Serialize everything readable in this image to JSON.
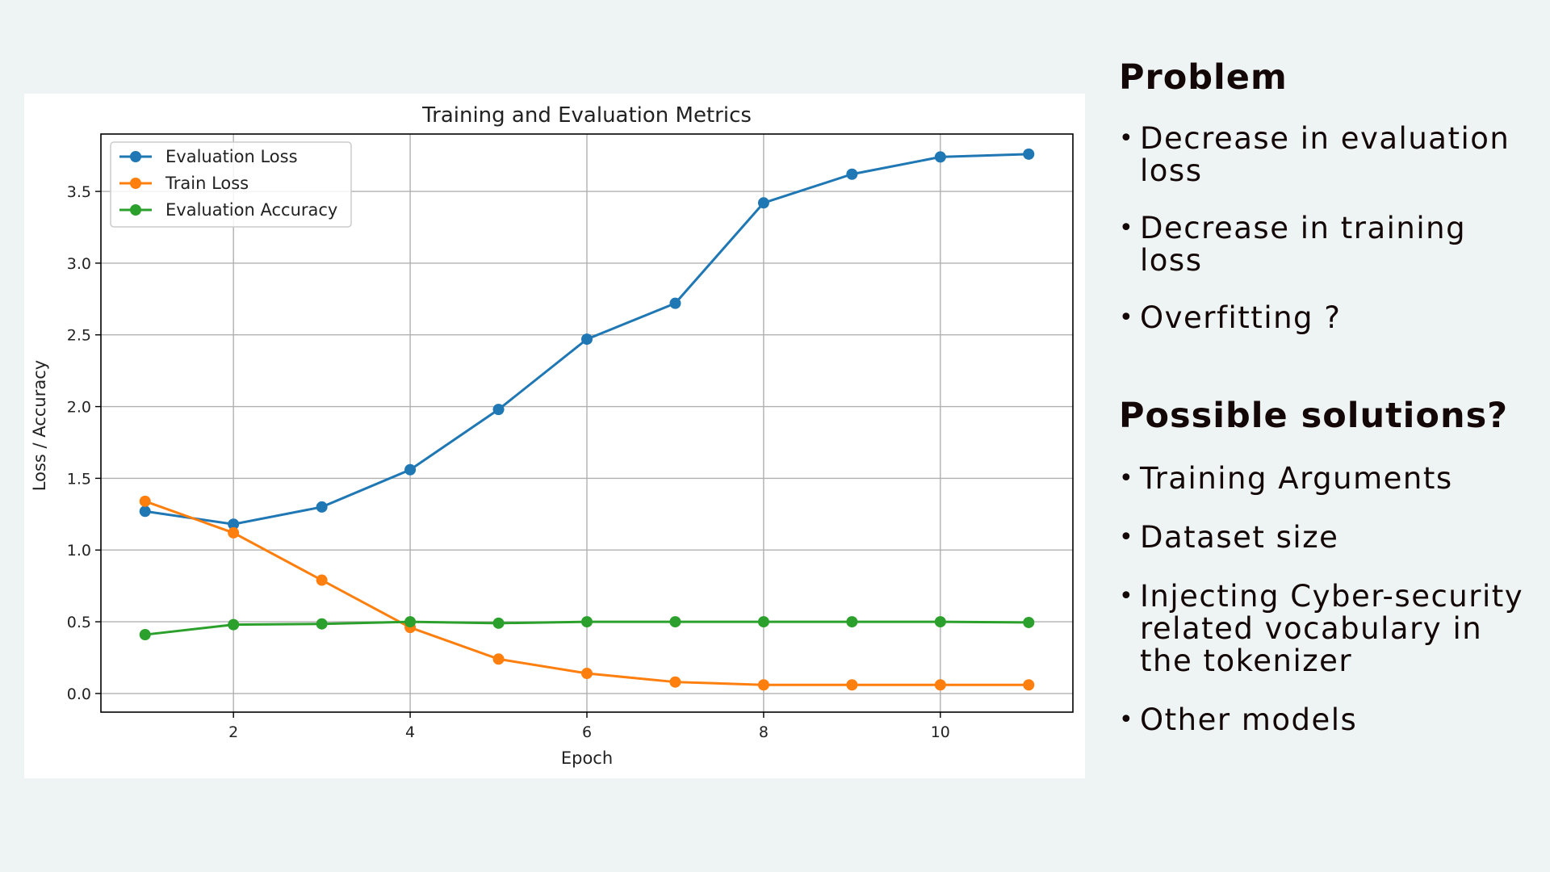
{
  "chart_data": {
    "type": "line",
    "title": "Training and Evaluation Metrics",
    "xlabel": "Epoch",
    "ylabel": "Loss / Accuracy",
    "xlim": [
      0.5,
      11.5
    ],
    "ylim": [
      -0.13,
      3.9
    ],
    "x_ticks": [
      "2",
      "4",
      "6",
      "8",
      "10"
    ],
    "y_ticks": [
      "0.0",
      "0.5",
      "1.0",
      "1.5",
      "2.0",
      "2.5",
      "3.0",
      "3.5"
    ],
    "grid": true,
    "legend_position": "top-left",
    "x": [
      1,
      2,
      3,
      4,
      5,
      6,
      7,
      8,
      9,
      10,
      11
    ],
    "series": [
      {
        "name": "Evaluation Loss",
        "color": "#1f77b4",
        "values": [
          1.27,
          1.18,
          1.3,
          1.56,
          1.98,
          2.47,
          2.72,
          3.42,
          3.62,
          3.74,
          3.76
        ]
      },
      {
        "name": "Train Loss",
        "color": "#ff7f0e",
        "values": [
          1.34,
          1.12,
          0.79,
          0.46,
          0.24,
          0.14,
          0.08,
          0.06,
          0.06,
          0.06,
          0.06
        ]
      },
      {
        "name": "Evaluation Accuracy",
        "color": "#2ca02c",
        "values": [
          0.41,
          0.48,
          0.485,
          0.5,
          0.49,
          0.5,
          0.5,
          0.5,
          0.5,
          0.5,
          0.495
        ]
      }
    ]
  },
  "side": {
    "problem_heading": "Problem",
    "problem_items": [
      "Decrease in evaluation loss",
      "Decrease in training loss",
      "Overfitting ?"
    ],
    "solutions_heading": "Possible solutions?",
    "solutions_items": [
      "Training Arguments",
      "Dataset size",
      "Injecting Cyber-security related vocabulary in the tokenizer",
      "Other models"
    ]
  }
}
